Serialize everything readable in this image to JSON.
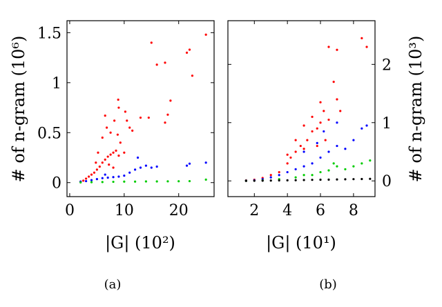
{
  "chart_data": [
    {
      "panel": "a",
      "type": "scatter",
      "caption": "(a)",
      "xlabel": "|G| (10²)",
      "ylabel": "# of n-gram (10⁶)",
      "xlim": [
        -0.5,
        26.5
      ],
      "ylim": [
        -0.14,
        1.62
      ],
      "xticks": [
        "0",
        "10",
        "20"
      ],
      "xtick_values": [
        0,
        10,
        20
      ],
      "yticks": [
        "0",
        "0.5",
        "1",
        "1.5"
      ],
      "ytick_values": [
        0,
        0.5,
        1,
        1.5
      ],
      "ylabel_side": "left",
      "series_colors": [
        "#ff0000",
        "#0000ff",
        "#00cc00"
      ],
      "series": [
        {
          "color": "#ff0000",
          "values": [
            [
              2.0,
              0.01
            ],
            [
              2.5,
              0.02
            ],
            [
              3.0,
              0.04
            ],
            [
              3.5,
              0.06
            ],
            [
              4.0,
              0.08
            ],
            [
              4.5,
              0.1
            ],
            [
              5.0,
              0.13
            ],
            [
              5.5,
              0.16
            ],
            [
              6.0,
              0.2
            ],
            [
              6.5,
              0.23
            ],
            [
              7.0,
              0.26
            ],
            [
              7.5,
              0.28
            ],
            [
              8.0,
              0.3
            ],
            [
              8.5,
              0.32
            ],
            [
              9.0,
              0.27
            ],
            [
              5.2,
              0.3
            ],
            [
              6.0,
              0.45
            ],
            [
              6.8,
              0.55
            ],
            [
              7.5,
              0.5
            ],
            [
              8.2,
              0.62
            ],
            [
              8.8,
              0.48
            ],
            [
              9.3,
              0.4
            ],
            [
              9.0,
              0.75
            ],
            [
              8.9,
              0.83
            ],
            [
              6.5,
              0.67
            ],
            [
              7.2,
              0.18
            ],
            [
              8.0,
              0.15
            ],
            [
              4.8,
              0.2
            ],
            [
              10.0,
              0.3
            ],
            [
              10.5,
              0.62
            ],
            [
              11.0,
              0.55
            ],
            [
              11.5,
              0.52
            ],
            [
              13.0,
              0.65
            ],
            [
              14.5,
              0.65
            ],
            [
              17.5,
              0.6
            ],
            [
              18.0,
              0.68
            ],
            [
              18.5,
              0.82
            ],
            [
              15.0,
              1.4
            ],
            [
              16.0,
              1.18
            ],
            [
              17.5,
              1.2
            ],
            [
              21.5,
              1.3
            ],
            [
              22.0,
              1.33
            ],
            [
              22.5,
              1.07
            ],
            [
              25.0,
              1.48
            ],
            [
              10.2,
              0.71
            ]
          ]
        },
        {
          "color": "#0000ff",
          "values": [
            [
              2.0,
              0.01
            ],
            [
              3.0,
              0.015
            ],
            [
              4.0,
              0.025
            ],
            [
              5.0,
              0.035
            ],
            [
              6.0,
              0.045
            ],
            [
              7.0,
              0.05
            ],
            [
              8.0,
              0.055
            ],
            [
              9.0,
              0.06
            ],
            [
              10.0,
              0.07
            ],
            [
              11.0,
              0.1
            ],
            [
              12.0,
              0.13
            ],
            [
              13.0,
              0.15
            ],
            [
              14.0,
              0.17
            ],
            [
              15.0,
              0.15
            ],
            [
              16.0,
              0.16
            ],
            [
              12.5,
              0.25
            ],
            [
              21.5,
              0.17
            ],
            [
              22.0,
              0.19
            ],
            [
              25.0,
              0.2
            ],
            [
              6.5,
              0.08
            ]
          ]
        },
        {
          "color": "#00cc00",
          "values": [
            [
              2.0,
              0.002
            ],
            [
              4.0,
              0.004
            ],
            [
              6.0,
              0.006
            ],
            [
              8.0,
              0.008
            ],
            [
              10.0,
              0.01
            ],
            [
              12.0,
              0.01
            ],
            [
              14.0,
              0.012
            ],
            [
              16.0,
              0.012
            ],
            [
              18.0,
              0.013
            ],
            [
              20.0,
              0.014
            ],
            [
              22.0,
              0.015
            ],
            [
              25.0,
              0.03
            ]
          ]
        }
      ]
    },
    {
      "panel": "b",
      "type": "scatter",
      "caption": "(b)",
      "xlabel": "|G| (10¹)",
      "ylabel": "# of n-gram (10³)",
      "xlim": [
        0.4,
        9.3
      ],
      "ylim": [
        -0.27,
        2.75
      ],
      "xticks": [
        "2",
        "4",
        "6",
        "8"
      ],
      "xtick_values": [
        2,
        4,
        6,
        8
      ],
      "yticks": [
        "0",
        "1",
        "2"
      ],
      "ytick_values": [
        0,
        1,
        2
      ],
      "ylabel_side": "right",
      "series_colors": [
        "#ff0000",
        "#0000ff",
        "#00cc00",
        "#000000"
      ],
      "series": [
        {
          "color": "#ff0000",
          "values": [
            [
              1.5,
              0.01
            ],
            [
              2.0,
              0.02
            ],
            [
              2.5,
              0.05
            ],
            [
              3.0,
              0.1
            ],
            [
              3.5,
              0.15
            ],
            [
              4.0,
              0.3
            ],
            [
              4.2,
              0.4
            ],
            [
              4.5,
              0.5
            ],
            [
              4.8,
              0.6
            ],
            [
              5.0,
              0.55
            ],
            [
              5.2,
              0.7
            ],
            [
              5.5,
              0.85
            ],
            [
              5.8,
              0.9
            ],
            [
              6.0,
              1.0
            ],
            [
              6.2,
              1.2
            ],
            [
              6.5,
              1.05
            ],
            [
              7.0,
              1.4
            ],
            [
              7.2,
              1.2
            ],
            [
              6.5,
              2.3
            ],
            [
              6.8,
              1.7
            ],
            [
              7.0,
              2.25
            ],
            [
              8.5,
              2.45
            ],
            [
              8.8,
              2.3
            ],
            [
              6.0,
              1.35
            ],
            [
              5.5,
              1.1
            ],
            [
              4.5,
              0.7
            ],
            [
              5.0,
              0.95
            ],
            [
              5.8,
              0.6
            ],
            [
              6.3,
              0.7
            ],
            [
              4.0,
              0.45
            ]
          ]
        },
        {
          "color": "#0000ff",
          "values": [
            [
              1.5,
              0.005
            ],
            [
              2.0,
              0.01
            ],
            [
              2.5,
              0.03
            ],
            [
              3.0,
              0.06
            ],
            [
              3.5,
              0.1
            ],
            [
              4.0,
              0.15
            ],
            [
              4.5,
              0.2
            ],
            [
              5.0,
              0.25
            ],
            [
              5.5,
              0.3
            ],
            [
              6.0,
              0.4
            ],
            [
              6.5,
              0.5
            ],
            [
              7.0,
              0.6
            ],
            [
              7.5,
              0.55
            ],
            [
              8.0,
              0.7
            ],
            [
              8.5,
              0.9
            ],
            [
              8.8,
              0.95
            ],
            [
              5.0,
              0.5
            ],
            [
              5.8,
              0.65
            ],
            [
              6.2,
              0.85
            ],
            [
              7.0,
              1.0
            ]
          ]
        },
        {
          "color": "#00cc00",
          "values": [
            [
              1.5,
              0.002
            ],
            [
              2.5,
              0.01
            ],
            [
              3.5,
              0.03
            ],
            [
              4.5,
              0.06
            ],
            [
              5.5,
              0.1
            ],
            [
              6.0,
              0.15
            ],
            [
              6.5,
              0.18
            ],
            [
              7.0,
              0.25
            ],
            [
              7.5,
              0.2
            ],
            [
              8.0,
              0.25
            ],
            [
              8.5,
              0.3
            ],
            [
              9.0,
              0.35
            ],
            [
              5.0,
              0.1
            ],
            [
              6.8,
              0.3
            ]
          ]
        },
        {
          "color": "#000000",
          "values": [
            [
              1.5,
              0.0
            ],
            [
              2.0,
              0.002
            ],
            [
              2.5,
              0.004
            ],
            [
              3.0,
              0.006
            ],
            [
              3.5,
              0.008
            ],
            [
              4.0,
              0.01
            ],
            [
              4.5,
              0.012
            ],
            [
              5.0,
              0.015
            ],
            [
              5.5,
              0.018
            ],
            [
              6.0,
              0.02
            ],
            [
              6.5,
              0.022
            ],
            [
              7.0,
              0.025
            ],
            [
              7.5,
              0.028
            ],
            [
              8.0,
              0.03
            ],
            [
              8.5,
              0.032
            ],
            [
              9.0,
              0.035
            ]
          ]
        }
      ]
    }
  ]
}
